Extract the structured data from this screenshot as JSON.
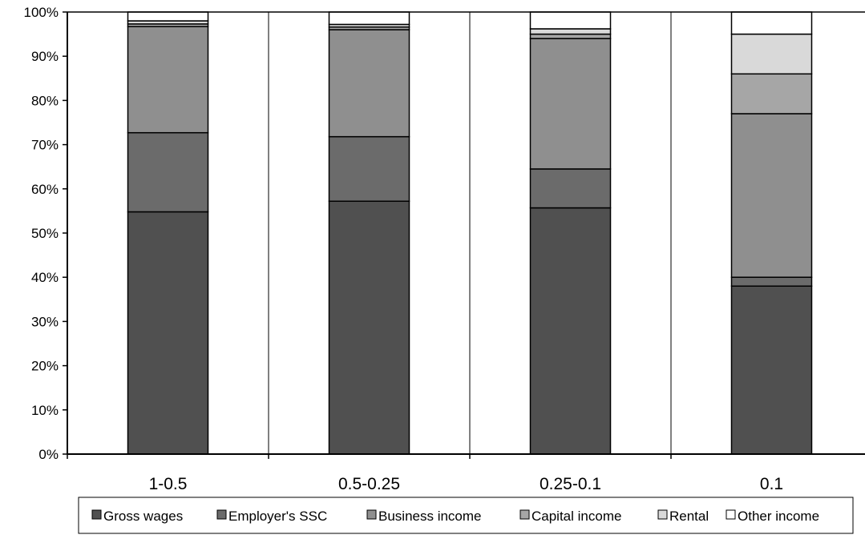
{
  "chart_data": {
    "type": "bar",
    "stacked": true,
    "percent": true,
    "categories": [
      "1-0.5",
      "0.5-0.25",
      "0.25-0.1",
      "0.1"
    ],
    "yticks": [
      "0%",
      "10%",
      "20%",
      "30%",
      "40%",
      "50%",
      "60%",
      "70%",
      "80%",
      "90%",
      "100%"
    ],
    "ylim": [
      0,
      100
    ],
    "grid": false,
    "legend_position": "bottom",
    "series": [
      {
        "name": "Gross wages",
        "color": "#505050",
        "values": [
          54.8,
          57.2,
          55.7,
          38.0
        ]
      },
      {
        "name": "Employer's SSC",
        "color": "#6b6b6b",
        "values": [
          17.9,
          14.6,
          8.8,
          2.0
        ]
      },
      {
        "name": "Business income",
        "color": "#8f8f8f",
        "values": [
          24.0,
          24.2,
          29.5,
          37.0
        ]
      },
      {
        "name": "Capital income",
        "color": "#a6a6a6",
        "values": [
          0.6,
          0.6,
          1.0,
          9.0
        ]
      },
      {
        "name": "Rental",
        "color": "#d9d9d9",
        "values": [
          0.7,
          0.6,
          1.2,
          9.0
        ]
      },
      {
        "name": "Other income",
        "color": "#ffffff",
        "values": [
          2.0,
          2.8,
          3.8,
          5.0
        ]
      }
    ]
  }
}
